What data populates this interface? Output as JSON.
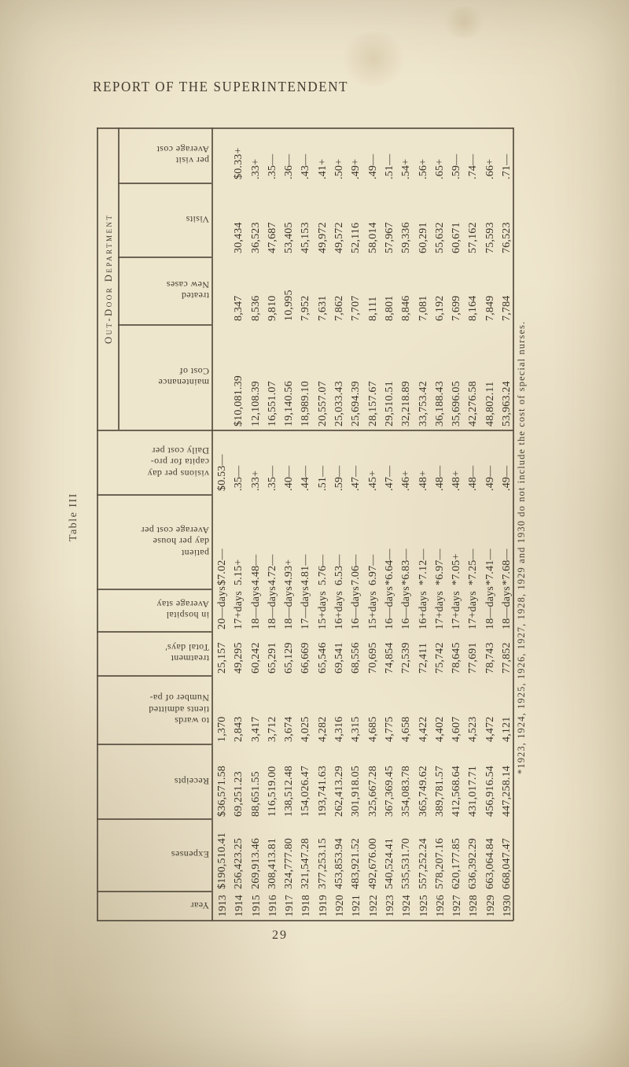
{
  "page": {
    "title": "REPORT OF THE SUPERINTENDENT",
    "page_number": "29",
    "table_label": "Table III",
    "footnote": "*1923, 1924, 1925, 1926, 1927, 1928, 1929 and 1930 do not include the cost of special nurses.",
    "group_label": "Out-Door Department"
  },
  "chart_data": {
    "type": "table",
    "title": "Table III — Out-Door Department",
    "years": [
      "1913",
      "1914",
      "1915",
      "1916",
      "1917",
      "1918",
      "1919",
      "1920",
      "1921",
      "1922",
      "1923",
      "1924",
      "1925",
      "1926",
      "1927",
      "1928",
      "1929",
      "1930"
    ]
  },
  "rows": [
    {
      "label_lines": [
        "Average cost",
        "per visit",
        ""
      ],
      "values": [
        "$0.33+",
        ".33+",
        ".35—",
        ".36—",
        ".43—",
        ".41+",
        ".50+",
        ".49+",
        ".49—",
        ".51—",
        ".54+",
        ".56+",
        ".65+",
        ".59—",
        ".74—",
        ".66+",
        ".71—"
      ]
    },
    {
      "label_lines": [
        "Visits",
        "",
        ""
      ],
      "values": [
        "30,434",
        "36,523",
        "47,687",
        "53,405",
        "45,153",
        "49,972",
        "49,572",
        "52,116",
        "58,014",
        "57,967",
        "59,336",
        "60,291",
        "55,632",
        "60,671",
        "57,162",
        "75,593",
        "76,523"
      ]
    },
    {
      "label_lines": [
        "New cases",
        "treated",
        ""
      ],
      "values": [
        "8,347",
        "8,536",
        "9,810",
        "10,995",
        "7,952",
        "7,631",
        "7,862",
        "7,707",
        "8,111",
        "8,801",
        "8,846",
        "7,081",
        "6,192",
        "7,699",
        "8,164",
        "7,849",
        "7,784"
      ]
    },
    {
      "label_lines": [
        "Cost of",
        "maintenance",
        ""
      ],
      "values": [
        "$10,081.39",
        "12,108.39",
        "16,551.07",
        "19,140.56",
        "18,989.10",
        "20,557.07",
        "25,033.43",
        "25,694.39",
        "28,157.67",
        "29,510.51",
        "32,218.89",
        "33,753.42",
        "36,188.43",
        "35,696.05",
        "42,276.58",
        "48,802.11",
        "53,963.24"
      ]
    },
    {
      "label_lines": [
        "Daily cost per",
        "capita for pro-",
        "visions per day"
      ],
      "values": [
        "$0.53—",
        ".35—",
        ".33+",
        ".35—",
        ".40—",
        ".44—",
        ".51—",
        ".59—",
        ".47—",
        ".45+",
        ".47—",
        ".46+",
        ".48+",
        ".48—",
        ".48+",
        ".48—",
        ".49—",
        ".49—"
      ]
    },
    {
      "label_lines": [
        "Average cost per",
        "day per house",
        "patient"
      ],
      "values": [
        "$7.02—",
        "5.15+",
        "4.48—",
        "4.72—",
        "4.93+",
        "4.81—",
        "5.76—",
        "6.53—",
        "7.06—",
        "6.97—",
        "*6.64—",
        "*6.83—",
        "*7.12—",
        "*6.97—",
        "*7.05+",
        "*7.25—",
        "*7.41—",
        "*7.68—"
      ]
    },
    {
      "label_lines": [
        "Average stay",
        "in hospital",
        ""
      ],
      "values": [
        "20—days",
        "17+days",
        "18—days",
        "18—days",
        "18—days",
        "17—days",
        "15+days",
        "16+days",
        "16—days",
        "15+days",
        "16—days",
        "16—days",
        "16+days",
        "17+days",
        "17+days",
        "17+days",
        "18—days",
        "18—days"
      ]
    },
    {
      "label_lines": [
        "Total days'",
        "treatment",
        ""
      ],
      "values": [
        "25,157",
        "49,295",
        "60,242",
        "65,291",
        "65,129",
        "66,669",
        "65,546",
        "69,541",
        "68,556",
        "70,695",
        "74,854",
        "72,539",
        "72,411",
        "75,742",
        "78,645",
        "77,691",
        "78,743",
        "77,852"
      ]
    },
    {
      "label_lines": [
        "Number of pa-",
        "tients admitted",
        "to wards"
      ],
      "values": [
        "1,370",
        "2,843",
        "3,417",
        "3,712",
        "3,674",
        "4,025",
        "4,282",
        "4,316",
        "4,315",
        "4,685",
        "4,775",
        "4,658",
        "4,422",
        "4,402",
        "4,607",
        "4,523",
        "4,472",
        "4,121"
      ]
    },
    {
      "label_lines": [
        "Receipts",
        "",
        ""
      ],
      "values": [
        "$36,571.58",
        "69,251.23",
        "88,651.55",
        "116,519.00",
        "138,512.48",
        "154,026.47",
        "193,741.63",
        "262,413.29",
        "301,918.05",
        "325,667.28",
        "367,369.45",
        "354,083.78",
        "365,749.62",
        "389,781.57",
        "412,568.64",
        "431,017.71",
        "456,916.54",
        "447,258.14"
      ]
    },
    {
      "label_lines": [
        "Expenses",
        "",
        ""
      ],
      "values": [
        "$190,510.41",
        "256,423.25",
        "269,913.46",
        "308,413.81",
        "324,777.80",
        "321,547.28",
        "377,253.15",
        "453,853.94",
        "483,921.52",
        "492,676.00",
        "540,524.41",
        "535,531.70",
        "557,252.24",
        "578,207.16",
        "620,177.85",
        "636,392.29",
        "663,064.84",
        "668,047.47"
      ]
    },
    {
      "label_lines": [
        "Year",
        "",
        ""
      ],
      "values": [
        "1913",
        "1914",
        "1915",
        "1916",
        "1917",
        "1918",
        "1919",
        "1920",
        "1921",
        "1922",
        "1923",
        "1924",
        "1925",
        "1926",
        "1927",
        "1928",
        "1929",
        "1930"
      ]
    }
  ]
}
